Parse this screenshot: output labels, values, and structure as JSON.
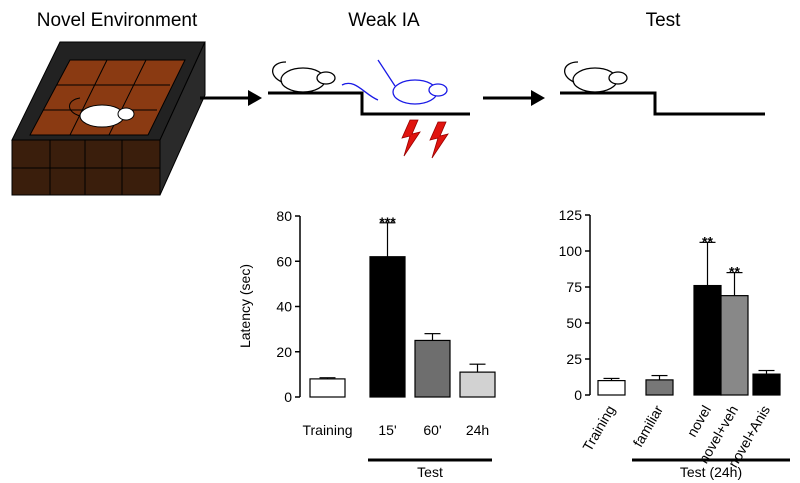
{
  "panels": {
    "titles": [
      "Novel Environment",
      "Weak IA",
      "Test"
    ]
  },
  "chart_data": [
    {
      "type": "bar",
      "ylabel": "Latency (sec)",
      "categories": [
        "Training",
        "15'",
        "60'",
        "24h"
      ],
      "values": [
        8,
        62,
        25,
        11
      ],
      "errors": [
        0.5,
        15,
        3,
        3.5
      ],
      "colors": [
        "#ffffff",
        "#000000",
        "#6e6e6e",
        "#d2d2d2"
      ],
      "annotations": [
        null,
        "***",
        null,
        null
      ],
      "group_label": "Test",
      "ylim": [
        0,
        80
      ],
      "yticks": [
        0,
        20,
        40,
        60,
        80
      ]
    },
    {
      "type": "bar",
      "categories": [
        "Training",
        "familiar",
        "novel",
        "novel+veh",
        "novel+Anis"
      ],
      "values": [
        10,
        10.5,
        76,
        69,
        14.5
      ],
      "errors": [
        1.5,
        3,
        30,
        16,
        2.5
      ],
      "colors": [
        "#ffffff",
        "#777777",
        "#000000",
        "#888888",
        "#000000"
      ],
      "annotations": [
        null,
        null,
        "**",
        "**",
        null
      ],
      "group_label": "Test (24h)",
      "ylim": [
        0,
        125
      ],
      "yticks": [
        0,
        25,
        50,
        75,
        100,
        125
      ]
    }
  ]
}
